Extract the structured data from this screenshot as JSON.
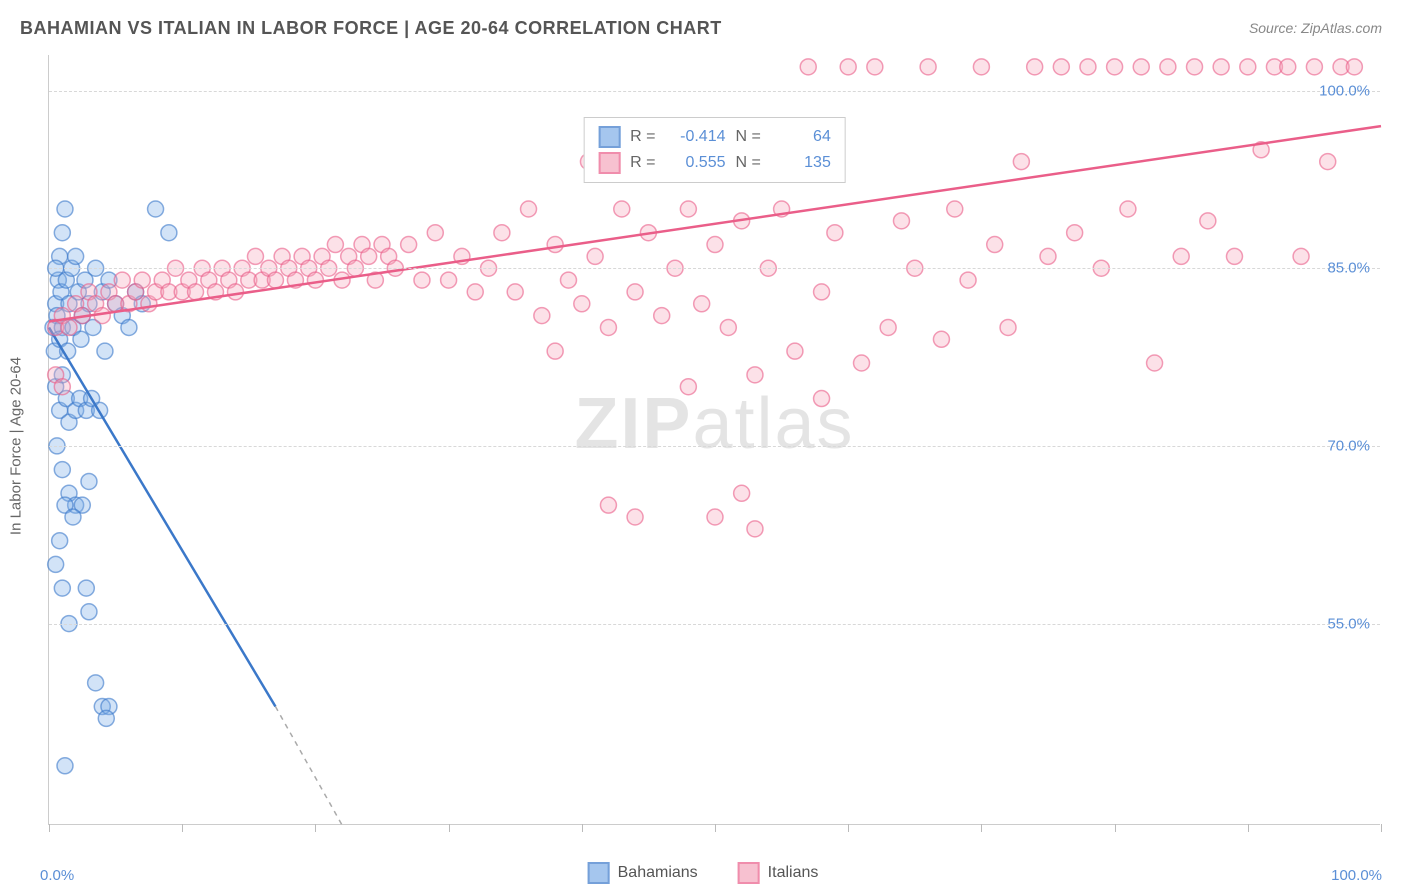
{
  "title": "BAHAMIAN VS ITALIAN IN LABOR FORCE | AGE 20-64 CORRELATION CHART",
  "source": "Source: ZipAtlas.com",
  "yaxis_title": "In Labor Force | Age 20-64",
  "watermark_zip": "ZIP",
  "watermark_atlas": "atlas",
  "xaxis": {
    "min_label": "0.0%",
    "max_label": "100.0%",
    "min": 0,
    "max": 100
  },
  "yaxis": {
    "ticks": [
      {
        "value": 55.0,
        "label": "55.0%"
      },
      {
        "value": 70.0,
        "label": "70.0%"
      },
      {
        "value": 85.0,
        "label": "85.0%"
      },
      {
        "value": 100.0,
        "label": "100.0%"
      }
    ],
    "min": 38,
    "max": 103
  },
  "xticks_pct": [
    0,
    10,
    20,
    30,
    40,
    50,
    60,
    70,
    80,
    90,
    100
  ],
  "chart": {
    "type": "scatter",
    "background_color": "#ffffff",
    "grid_color": "#d8d8d8",
    "marker_radius": 8,
    "marker_opacity": 0.35,
    "line_width": 2.5,
    "xlim": [
      0,
      100
    ],
    "ylim": [
      38,
      103
    ]
  },
  "series": [
    {
      "name": "Bahamians",
      "color_fill": "#7faee8",
      "color_stroke": "#3b78c9",
      "R_label": "R =",
      "R": "-0.414",
      "N_label": "N =",
      "N": "64",
      "trend": {
        "x1": 0,
        "y1": 80,
        "x2": 17,
        "y2": 48,
        "dash_ext_x": 22,
        "dash_ext_y": 38
      },
      "points": [
        [
          0.3,
          80
        ],
        [
          0.5,
          82
        ],
        [
          0.7,
          84
        ],
        [
          0.8,
          86
        ],
        [
          1.0,
          88
        ],
        [
          1.2,
          90
        ],
        [
          0.4,
          78
        ],
        [
          0.6,
          81
        ],
        [
          0.5,
          85
        ],
        [
          0.9,
          83
        ],
        [
          1.0,
          80
        ],
        [
          1.3,
          84
        ],
        [
          1.5,
          82
        ],
        [
          1.7,
          85
        ],
        [
          2.0,
          86
        ],
        [
          2.2,
          83
        ],
        [
          2.5,
          81
        ],
        [
          2.7,
          84
        ],
        [
          3.0,
          82
        ],
        [
          3.5,
          85
        ],
        [
          4.0,
          83
        ],
        [
          4.5,
          84
        ],
        [
          5.0,
          82
        ],
        [
          5.5,
          81
        ],
        [
          6.0,
          80
        ],
        [
          6.5,
          83
        ],
        [
          7.0,
          82
        ],
        [
          8.0,
          90
        ],
        [
          9.0,
          88
        ],
        [
          0.5,
          75
        ],
        [
          0.8,
          73
        ],
        [
          1.0,
          76
        ],
        [
          1.3,
          74
        ],
        [
          1.5,
          72
        ],
        [
          2.0,
          73
        ],
        [
          2.3,
          74
        ],
        [
          2.8,
          73
        ],
        [
          3.2,
          74
        ],
        [
          3.8,
          73
        ],
        [
          0.6,
          70
        ],
        [
          1.0,
          68
        ],
        [
          1.5,
          66
        ],
        [
          2.0,
          65
        ],
        [
          2.5,
          65
        ],
        [
          3.0,
          67
        ],
        [
          0.8,
          62
        ],
        [
          1.2,
          65
        ],
        [
          1.8,
          64
        ],
        [
          0.5,
          60
        ],
        [
          1.0,
          58
        ],
        [
          2.8,
          58
        ],
        [
          3.0,
          56
        ],
        [
          1.5,
          55
        ],
        [
          3.5,
          50
        ],
        [
          4.0,
          48
        ],
        [
          4.5,
          48
        ],
        [
          4.3,
          47
        ],
        [
          1.2,
          43
        ],
        [
          0.8,
          79
        ],
        [
          1.4,
          78
        ],
        [
          1.8,
          80
        ],
        [
          2.4,
          79
        ],
        [
          3.3,
          80
        ],
        [
          4.2,
          78
        ]
      ]
    },
    {
      "name": "Italians",
      "color_fill": "#f5a8bd",
      "color_stroke": "#ea5e89",
      "R_label": "R =",
      "R": "0.555",
      "N_label": "N =",
      "N": "135",
      "trend": {
        "x1": 0,
        "y1": 80.5,
        "x2": 100,
        "y2": 97
      },
      "points": [
        [
          0.5,
          80
        ],
        [
          1.0,
          81
        ],
        [
          1.5,
          80
        ],
        [
          2.0,
          82
        ],
        [
          2.5,
          81
        ],
        [
          3.0,
          83
        ],
        [
          3.5,
          82
        ],
        [
          4.0,
          81
        ],
        [
          4.5,
          83
        ],
        [
          5.0,
          82
        ],
        [
          5.5,
          84
        ],
        [
          6.0,
          82
        ],
        [
          6.5,
          83
        ],
        [
          7.0,
          84
        ],
        [
          7.5,
          82
        ],
        [
          8.0,
          83
        ],
        [
          8.5,
          84
        ],
        [
          9.0,
          83
        ],
        [
          9.5,
          85
        ],
        [
          10.0,
          83
        ],
        [
          10.5,
          84
        ],
        [
          11.0,
          83
        ],
        [
          11.5,
          85
        ],
        [
          12.0,
          84
        ],
        [
          12.5,
          83
        ],
        [
          13.0,
          85
        ],
        [
          13.5,
          84
        ],
        [
          14.0,
          83
        ],
        [
          14.5,
          85
        ],
        [
          15.0,
          84
        ],
        [
          15.5,
          86
        ],
        [
          16.0,
          84
        ],
        [
          16.5,
          85
        ],
        [
          17.0,
          84
        ],
        [
          17.5,
          86
        ],
        [
          18.0,
          85
        ],
        [
          18.5,
          84
        ],
        [
          19.0,
          86
        ],
        [
          19.5,
          85
        ],
        [
          20.0,
          84
        ],
        [
          20.5,
          86
        ],
        [
          21.0,
          85
        ],
        [
          21.5,
          87
        ],
        [
          22.0,
          84
        ],
        [
          22.5,
          86
        ],
        [
          23.0,
          85
        ],
        [
          23.5,
          87
        ],
        [
          24.0,
          86
        ],
        [
          24.5,
          84
        ],
        [
          25.0,
          87
        ],
        [
          25.5,
          86
        ],
        [
          26.0,
          85
        ],
        [
          27.0,
          87
        ],
        [
          28.0,
          84
        ],
        [
          29.0,
          88
        ],
        [
          30.0,
          84
        ],
        [
          31.0,
          86
        ],
        [
          32.0,
          83
        ],
        [
          33.0,
          85
        ],
        [
          34.0,
          88
        ],
        [
          35.0,
          83
        ],
        [
          36.0,
          90
        ],
        [
          37.0,
          81
        ],
        [
          38.0,
          87
        ],
        [
          39.0,
          84
        ],
        [
          40.0,
          82
        ],
        [
          40.5,
          94
        ],
        [
          41.0,
          86
        ],
        [
          42.0,
          80
        ],
        [
          43.0,
          90
        ],
        [
          44.0,
          83
        ],
        [
          45.0,
          88
        ],
        [
          46.0,
          81
        ],
        [
          47.0,
          85
        ],
        [
          48.0,
          90
        ],
        [
          49.0,
          82
        ],
        [
          50.0,
          87
        ],
        [
          51.0,
          80
        ],
        [
          52.0,
          89
        ],
        [
          53.0,
          76
        ],
        [
          54.0,
          85
        ],
        [
          55.0,
          90
        ],
        [
          56.0,
          78
        ],
        [
          57.0,
          102
        ],
        [
          58.0,
          83
        ],
        [
          59.0,
          88
        ],
        [
          60.0,
          102
        ],
        [
          61.0,
          77
        ],
        [
          62.0,
          102
        ],
        [
          63.0,
          80
        ],
        [
          64.0,
          89
        ],
        [
          65.0,
          85
        ],
        [
          66.0,
          102
        ],
        [
          67.0,
          79
        ],
        [
          68.0,
          90
        ],
        [
          69.0,
          84
        ],
        [
          70.0,
          102
        ],
        [
          71.0,
          87
        ],
        [
          72.0,
          80
        ],
        [
          73.0,
          94
        ],
        [
          74.0,
          102
        ],
        [
          75.0,
          86
        ],
        [
          76.0,
          102
        ],
        [
          77.0,
          88
        ],
        [
          78.0,
          102
        ],
        [
          79.0,
          85
        ],
        [
          80.0,
          102
        ],
        [
          81.0,
          90
        ],
        [
          82.0,
          102
        ],
        [
          83.0,
          77
        ],
        [
          84.0,
          102
        ],
        [
          85.0,
          86
        ],
        [
          86.0,
          102
        ],
        [
          87.0,
          89
        ],
        [
          88.0,
          102
        ],
        [
          89.0,
          86
        ],
        [
          90.0,
          102
        ],
        [
          91.0,
          95
        ],
        [
          92.0,
          102
        ],
        [
          93.0,
          102
        ],
        [
          94.0,
          86
        ],
        [
          95.0,
          102
        ],
        [
          96.0,
          94
        ],
        [
          97.0,
          102
        ],
        [
          98.0,
          102
        ],
        [
          42.0,
          65
        ],
        [
          44.0,
          64
        ],
        [
          50.0,
          64
        ],
        [
          52.0,
          66
        ],
        [
          53.0,
          63
        ],
        [
          38.0,
          78
        ],
        [
          48.0,
          75
        ],
        [
          58.0,
          74
        ],
        [
          0.5,
          76
        ],
        [
          1.0,
          75
        ]
      ]
    }
  ],
  "bottom_legend": {
    "items": [
      {
        "label": "Bahamians",
        "fill": "#7faee8",
        "stroke": "#3b78c9"
      },
      {
        "label": "Italians",
        "fill": "#f5a8bd",
        "stroke": "#ea5e89"
      }
    ]
  }
}
